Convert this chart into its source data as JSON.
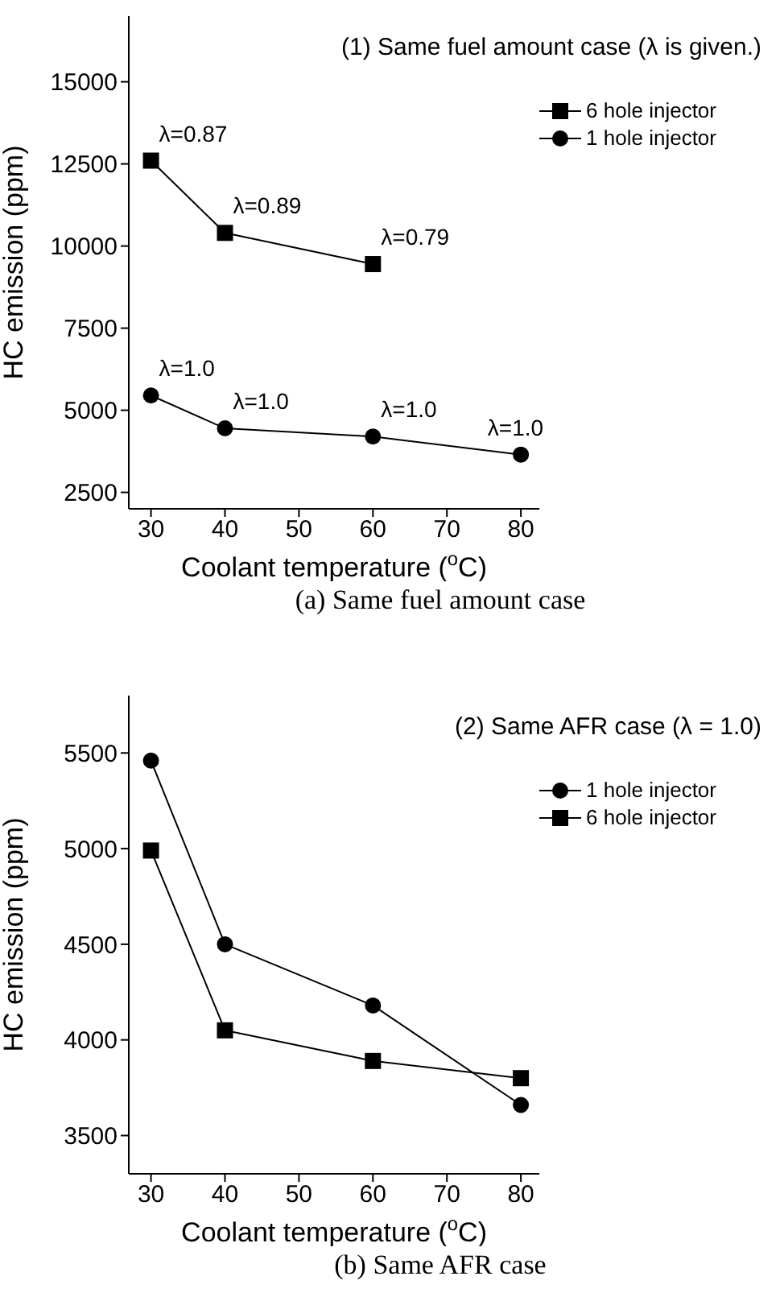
{
  "chart_data": [
    {
      "type": "line",
      "title": "(1) Same fuel amount case (λ is given.)",
      "xlabel": "Coolant temperature ($^{o}$C)",
      "ylabel": "HC emission    (ppm)",
      "x": [
        30,
        40,
        60,
        80
      ],
      "xlim": [
        27,
        82.5
      ],
      "xticks": [
        30,
        40,
        50,
        60,
        70,
        80
      ],
      "ylim": [
        2000,
        17000
      ],
      "yticks": [
        2500,
        5000,
        7500,
        10000,
        12500,
        15000
      ],
      "legend": "top right",
      "grid": false,
      "line_style": "solid",
      "series": [
        {
          "name": "6 hole injector",
          "color": "#000000",
          "marker": "square",
          "x": [
            30,
            40,
            60
          ],
          "values": [
            12600,
            10400,
            9450
          ]
        },
        {
          "name": "1 hole injector",
          "color": "#000000",
          "marker": "circle",
          "values": [
            5450,
            4450,
            4200,
            3650
          ]
        }
      ],
      "annotations": [
        {
          "text": "λ=0.87",
          "x": 30,
          "y": 12600
        },
        {
          "text": "λ=0.89",
          "x": 40,
          "y": 10400
        },
        {
          "text": "λ=0.79",
          "x": 60,
          "y": 9450
        },
        {
          "text": "λ=1.0",
          "x": 30,
          "y": 5450
        },
        {
          "text": "λ=1.0",
          "x": 40,
          "y": 4450
        },
        {
          "text": "λ=1.0",
          "x": 60,
          "y": 4200
        },
        {
          "text": "λ=1.0",
          "x": 80,
          "y": 3650
        },
        "(a) Same fuel amount case"
      ]
    },
    {
      "type": "line",
      "title": "(2) Same AFR case (λ = 1.0)",
      "xlabel": "Coolant temperature ($^{o}$C)",
      "ylabel": "HC emission    (ppm)",
      "x": [
        30,
        40,
        60,
        80
      ],
      "xlim": [
        27,
        82.5
      ],
      "xticks": [
        30,
        40,
        50,
        60,
        70,
        80
      ],
      "ylim": [
        3300,
        5800
      ],
      "yticks": [
        3500,
        4000,
        4500,
        5000,
        5500
      ],
      "legend": "top right",
      "grid": false,
      "line_style": "solid",
      "series": [
        {
          "name": "1 hole injector",
          "color": "#000000",
          "marker": "circle",
          "values": [
            5460,
            4500,
            4180,
            3660
          ]
        },
        {
          "name": "6 hole injector",
          "color": "#000000",
          "marker": "square",
          "values": [
            4990,
            4050,
            3890,
            3800
          ]
        }
      ],
      "annotations": [
        "(b) Same AFR case"
      ]
    }
  ]
}
